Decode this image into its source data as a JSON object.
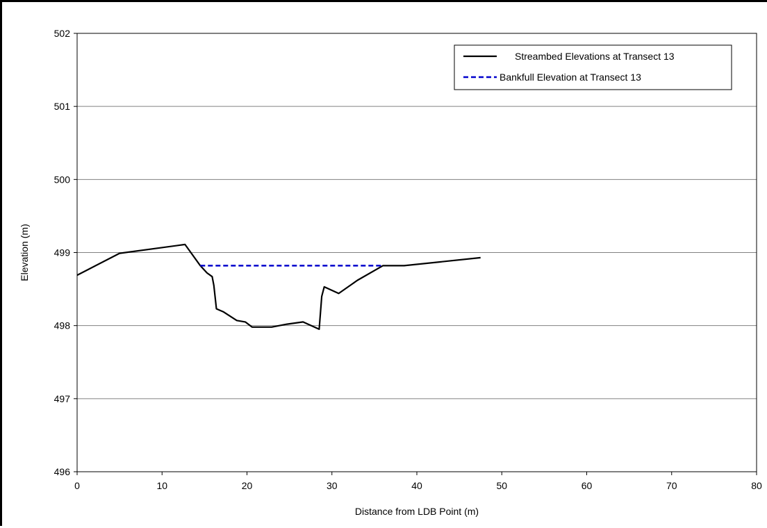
{
  "chart_data": {
    "type": "line",
    "xlabel": "Distance from LDB Point (m)",
    "ylabel": "Elevation  (m)",
    "xlim": [
      0,
      80
    ],
    "ylim": [
      496,
      502
    ],
    "x_ticks": [
      "0",
      "10",
      "20",
      "30",
      "40",
      "50",
      "60",
      "70",
      "80"
    ],
    "y_ticks": [
      "496",
      "497",
      "498",
      "499",
      "500",
      "501",
      "502"
    ],
    "grid": "horizontal",
    "legend_position": "top-right",
    "series": [
      {
        "name": "Streambed Elevations at Transect 13",
        "style": "solid",
        "color": "#000000",
        "x": [
          0,
          5,
          12.7,
          14.5,
          15.3,
          15.9,
          16.1,
          16.4,
          17.2,
          18.8,
          19.8,
          20.6,
          22.9,
          24.7,
          26.6,
          28.5,
          28.8,
          29.1,
          30.8,
          33.0,
          36.0,
          38.5,
          47.5
        ],
        "y": [
          498.69,
          498.99,
          499.11,
          498.82,
          498.72,
          498.67,
          498.55,
          498.23,
          498.19,
          498.07,
          498.05,
          497.98,
          497.98,
          498.02,
          498.05,
          497.95,
          498.4,
          498.53,
          498.44,
          498.62,
          498.82,
          498.82,
          498.93
        ]
      },
      {
        "name": "Bankfull Elevation at Transect 13",
        "style": "dashed",
        "color": "#0000CC",
        "x": [
          14.5,
          36.0
        ],
        "y": [
          498.82,
          498.82
        ]
      }
    ]
  }
}
